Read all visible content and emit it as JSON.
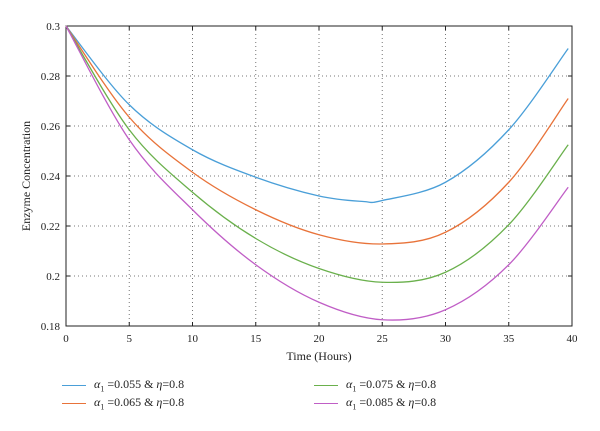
{
  "chart_data": {
    "type": "line",
    "title": "",
    "xlabel": "Time (Hours)",
    "ylabel": "Enzyme Concentration",
    "xlim": [
      0,
      40
    ],
    "ylim": [
      0.18,
      0.3
    ],
    "xticks": [
      0,
      5,
      10,
      15,
      20,
      25,
      30,
      35,
      40
    ],
    "yticks": [
      0.18,
      0.2,
      0.22,
      0.24,
      0.26,
      0.28,
      0.3
    ],
    "xtick_labels": [
      "0",
      "5",
      "10",
      "15",
      "20",
      "25",
      "30",
      "35",
      "40"
    ],
    "ytick_labels": [
      "0.18",
      "0.2",
      "0.22",
      "0.24",
      "0.26",
      "0.28",
      "0.3"
    ],
    "grid": true,
    "legend_placement": "bottom",
    "series": [
      {
        "name": "α1 =0.055 & η=0.8",
        "color": "#4a9fd8",
        "x": [
          0,
          5,
          10,
          15,
          20,
          23.5,
          25,
          30,
          35,
          39.7
        ],
        "y": [
          0.3,
          0.2685,
          0.2505,
          0.2395,
          0.232,
          0.2298,
          0.2302,
          0.2375,
          0.2585,
          0.291
        ]
      },
      {
        "name": "α1 =0.065 & η=0.8",
        "color": "#e8733a",
        "x": [
          0,
          5,
          10,
          15,
          20,
          25,
          30,
          35,
          39.7
        ],
        "y": [
          0.3,
          0.2635,
          0.2415,
          0.2265,
          0.2165,
          0.2128,
          0.2175,
          0.2375,
          0.271
        ]
      },
      {
        "name": "α1 =0.075 & η=0.8",
        "color": "#6ab04c",
        "x": [
          0,
          5,
          10,
          15,
          20,
          25,
          30,
          35,
          39.7
        ],
        "y": [
          0.3,
          0.2585,
          0.2335,
          0.215,
          0.203,
          0.1975,
          0.2015,
          0.2205,
          0.2525
        ]
      },
      {
        "name": "α1 =0.085 & η=0.8",
        "color": "#c05ec6",
        "x": [
          0,
          5,
          10,
          15,
          20,
          25,
          30,
          35,
          39.7
        ],
        "y": [
          0.3,
          0.2545,
          0.2265,
          0.2045,
          0.1895,
          0.1825,
          0.1865,
          0.2045,
          0.2355
        ]
      }
    ]
  },
  "legend": {
    "items": [
      {
        "sym": "α",
        "sub": "1",
        "text_a": " =0.055 & ",
        "eta": "η",
        "text_b": "=0.8",
        "color": "#4a9fd8"
      },
      {
        "sym": "α",
        "sub": "1",
        "text_a": " =0.065 & ",
        "eta": "η",
        "text_b": "=0.8",
        "color": "#e8733a"
      },
      {
        "sym": "α",
        "sub": "1",
        "text_a": " =0.075 & ",
        "eta": "η",
        "text_b": "=0.8",
        "color": "#6ab04c"
      },
      {
        "sym": "α",
        "sub": "1",
        "text_a": " =0.085 & ",
        "eta": "η",
        "text_b": "=0.8",
        "color": "#c05ec6"
      }
    ]
  }
}
